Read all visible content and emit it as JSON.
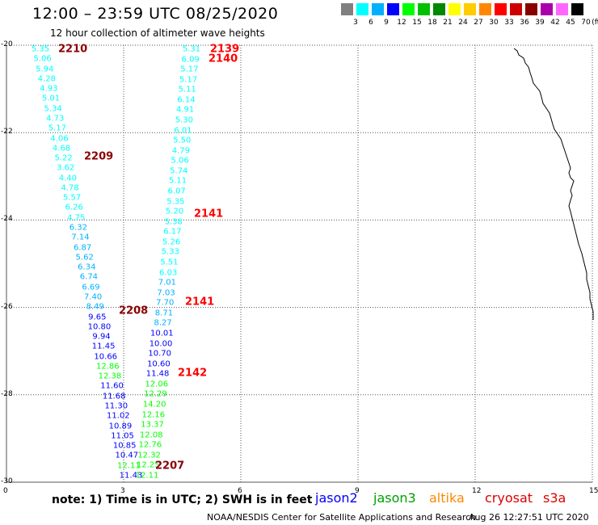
{
  "header": {
    "title": "12:00 – 23:59 UTC 08/25/2020",
    "subtitle": "12 hour collection of altimeter wave heights"
  },
  "legend": {
    "unit": "(ft)",
    "bins": [
      {
        "label": "3",
        "color": "#808080"
      },
      {
        "label": "6",
        "color": "#00ffff"
      },
      {
        "label": "9",
        "color": "#00b0ff"
      },
      {
        "label": "12",
        "color": "#0000ff"
      },
      {
        "label": "15",
        "color": "#00ff00"
      },
      {
        "label": "18",
        "color": "#00c000"
      },
      {
        "label": "21",
        "color": "#008800"
      },
      {
        "label": "24",
        "color": "#ffff00"
      },
      {
        "label": "27",
        "color": "#ffcc00"
      },
      {
        "label": "30",
        "color": "#ff8800"
      },
      {
        "label": "33",
        "color": "#ff0000"
      },
      {
        "label": "36",
        "color": "#cc0000"
      },
      {
        "label": "39",
        "color": "#880000"
      },
      {
        "label": "42",
        "color": "#aa00aa"
      },
      {
        "label": "45",
        "color": "#ff66ff"
      },
      {
        "label": "70",
        "color": "#000000"
      }
    ]
  },
  "axes": {
    "x_ticks": [
      "0",
      "3",
      "6",
      "9",
      "12",
      "15"
    ],
    "y_ticks": [
      "-20",
      "-22",
      "-24",
      "-26",
      "-28",
      "-30"
    ]
  },
  "tracks": [
    {
      "values": [
        "5.35",
        "5.06",
        "5.94",
        "4.28",
        "4.93",
        "5.01",
        "5.34",
        "4.73",
        "5.17",
        "4.06",
        "4.68",
        "5.22",
        "3.62",
        "4.40",
        "4.78",
        "5.57",
        "6.26",
        "4.75",
        "6.32",
        "7.14",
        "6.87",
        "5.62",
        "6.34",
        "6.74",
        "6.69",
        "7.40",
        "8.49",
        "9.65",
        "10.80",
        "9.94",
        "11.45",
        "10.66",
        "12.86",
        "12.38",
        "11.60",
        "11.68",
        "11.30",
        "11.02",
        "10.89",
        "11.05",
        "10.85",
        "10.47",
        "12.11",
        "11.43"
      ],
      "colors": [
        "#00ffff",
        "#00ffff",
        "#00ffff",
        "#00ffff",
        "#00ffff",
        "#00ffff",
        "#00ffff",
        "#00ffff",
        "#00ffff",
        "#00ffff",
        "#00ffff",
        "#00ffff",
        "#00ffff",
        "#00ffff",
        "#00ffff",
        "#00ffff",
        "#00ffff",
        "#00ffff",
        "#00b0ff",
        "#00b0ff",
        "#00b0ff",
        "#00b0ff",
        "#00b0ff",
        "#00b0ff",
        "#00b0ff",
        "#00b0ff",
        "#00b0ff",
        "#0000ff",
        "#0000ff",
        "#0000ff",
        "#0000ff",
        "#0000ff",
        "#00ff00",
        "#00ff00",
        "#0000ff",
        "#0000ff",
        "#0000ff",
        "#0000ff",
        "#0000ff",
        "#0000ff",
        "#0000ff",
        "#0000ff",
        "#00ff00",
        "#0000ff"
      ]
    },
    {
      "values": [
        "5.31",
        "6.09",
        "5.17",
        "5.17",
        "5.11",
        "6.14",
        "4.91",
        "5.30",
        "6.01",
        "5.50",
        "4.79",
        "5.06",
        "5.74",
        "5.11",
        "6.07",
        "5.35",
        "5.20",
        "5.38",
        "6.17",
        "5.26",
        "5.33",
        "5.51",
        "6.03",
        "7.01",
        "7.03",
        "7.70",
        "8.71",
        "8.27",
        "10.01",
        "10.00",
        "10.70",
        "10.60",
        "11.48",
        "12.06",
        "12.29",
        "14.20",
        "12.16",
        "13.37",
        "12.08",
        "12.76",
        "12.32",
        "12.25",
        "12.11"
      ],
      "colors": [
        "#00ffff",
        "#00ffff",
        "#00ffff",
        "#00ffff",
        "#00ffff",
        "#00ffff",
        "#00ffff",
        "#00ffff",
        "#00ffff",
        "#00ffff",
        "#00ffff",
        "#00ffff",
        "#00ffff",
        "#00ffff",
        "#00ffff",
        "#00ffff",
        "#00ffff",
        "#00ffff",
        "#00ffff",
        "#00ffff",
        "#00ffff",
        "#00ffff",
        "#00ffff",
        "#00b0ff",
        "#00b0ff",
        "#00b0ff",
        "#00b0ff",
        "#00b0ff",
        "#0000ff",
        "#0000ff",
        "#0000ff",
        "#0000ff",
        "#0000ff",
        "#00ff00",
        "#00ff00",
        "#00ff00",
        "#00ff00",
        "#00ff00",
        "#00ff00",
        "#00ff00",
        "#00ff00",
        "#00ff00",
        "#00ff00"
      ]
    }
  ],
  "passes": [
    {
      "label": "2210",
      "color": "#8b0000"
    },
    {
      "label": "2139",
      "color": "#ff0000"
    },
    {
      "label": "2140",
      "color": "#ff0000"
    },
    {
      "label": "2209",
      "color": "#8b0000"
    },
    {
      "label": "2141",
      "color": "#ff0000"
    },
    {
      "label": "2208",
      "color": "#8b0000"
    },
    {
      "label": "2141",
      "color": "#ff0000"
    },
    {
      "label": "2142",
      "color": "#ff0000"
    },
    {
      "label": "2207",
      "color": "#8b0000"
    }
  ],
  "footer": {
    "note": "note:  1) Time is in UTC;  2) SWH is in feet",
    "missions": [
      {
        "name": "jason2",
        "color": "#0000ff"
      },
      {
        "name": "jason3",
        "color": "#00a000"
      },
      {
        "name": "altika",
        "color": "#ff8800"
      },
      {
        "name": "cryosat",
        "color": "#dd0000"
      },
      {
        "name": "s3a",
        "color": "#dd0000"
      }
    ],
    "credit": "NOAA/NESDIS Center for Satellite Applications and Research",
    "timestamp": "Aug 26 12:27:51 UTC 2020"
  }
}
